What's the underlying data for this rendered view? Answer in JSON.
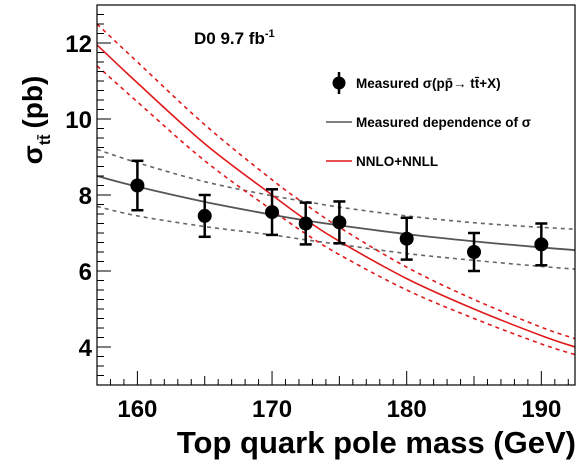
{
  "chart_data": {
    "type": "scatter",
    "annotation": "D0 9.7 fb",
    "annotation_sup": "-1",
    "xlabel": "Top quark pole mass (GeV)",
    "ylabel_sigma": "σ",
    "ylabel_subscript": "tt̄",
    "ylabel_unit": "(pb)",
    "xlim": [
      157,
      192.5
    ],
    "ylim": [
      3,
      13
    ],
    "xticks": [
      160,
      170,
      180,
      190
    ],
    "yticks": [
      4,
      6,
      8,
      10,
      12
    ],
    "grid": false,
    "legend_position": "top-right",
    "colors": {
      "measured": "#000000",
      "dependence": "#555555",
      "theory": "#e0191b"
    },
    "measured": {
      "name": "Measured σ(pp̄→ tt̄+X)",
      "points": [
        {
          "x": 160,
          "y": 8.25,
          "err": 0.65
        },
        {
          "x": 165,
          "y": 7.45,
          "err": 0.55
        },
        {
          "x": 170,
          "y": 7.55,
          "err": 0.6
        },
        {
          "x": 172.5,
          "y": 7.25,
          "err": 0.55
        },
        {
          "x": 175,
          "y": 7.28,
          "err": 0.55
        },
        {
          "x": 180,
          "y": 6.85,
          "err": 0.55
        },
        {
          "x": 185,
          "y": 6.5,
          "err": 0.5
        },
        {
          "x": 190,
          "y": 6.7,
          "err": 0.55
        }
      ]
    },
    "dependence": {
      "name": "Measured dependence of σ",
      "x": [
        157,
        160,
        165,
        170,
        172.5,
        175,
        180,
        185,
        190,
        192.5
      ],
      "y": [
        8.5,
        8.22,
        7.82,
        7.48,
        7.33,
        7.2,
        6.97,
        6.78,
        6.62,
        6.55
      ],
      "upper": [
        9.2,
        8.85,
        8.35,
        7.98,
        7.83,
        7.68,
        7.45,
        7.27,
        7.15,
        7.1
      ],
      "lower": [
        7.7,
        7.45,
        7.17,
        6.95,
        6.82,
        6.7,
        6.46,
        6.28,
        6.12,
        6.05
      ]
    },
    "theory": {
      "name": "NNLO+NNLL",
      "x": [
        157,
        160,
        165,
        170,
        172.5,
        175,
        180,
        185,
        190,
        192.5
      ],
      "y": [
        11.95,
        10.95,
        9.35,
        8.0,
        7.35,
        6.78,
        5.8,
        5.0,
        4.3,
        4.0
      ],
      "upper": [
        12.5,
        11.5,
        9.85,
        8.4,
        7.75,
        7.15,
        6.1,
        5.25,
        4.52,
        4.22
      ],
      "lower": [
        11.4,
        10.45,
        8.9,
        7.6,
        6.98,
        6.43,
        5.5,
        4.75,
        4.08,
        3.8
      ]
    }
  }
}
